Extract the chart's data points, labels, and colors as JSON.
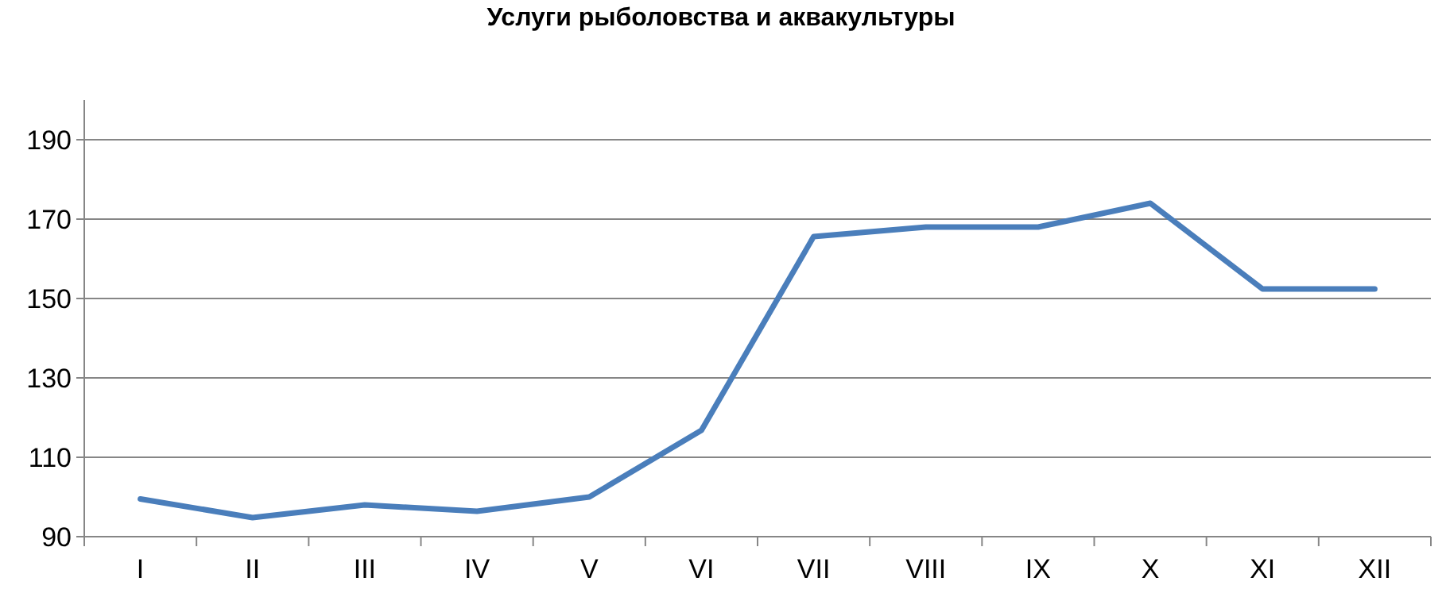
{
  "chart_data": {
    "type": "line",
    "title": "Услуги рыболовства и аквакультуры",
    "categories": [
      "I",
      "II",
      "III",
      "IV",
      "V",
      "VI",
      "VII",
      "VIII",
      "IX",
      "X",
      "XI",
      "XII"
    ],
    "series": [
      {
        "color": "#4a7ebb",
        "values": [
          99.5,
          94.8,
          98,
          96.4,
          100,
          116.8,
          165.6,
          168,
          168,
          174,
          152.4,
          152.4
        ]
      }
    ],
    "ylim": [
      90,
      200
    ],
    "yticks": [
      90,
      110,
      130,
      150,
      170,
      190
    ],
    "grid": "y",
    "marker": "none",
    "line_style": "solid"
  }
}
